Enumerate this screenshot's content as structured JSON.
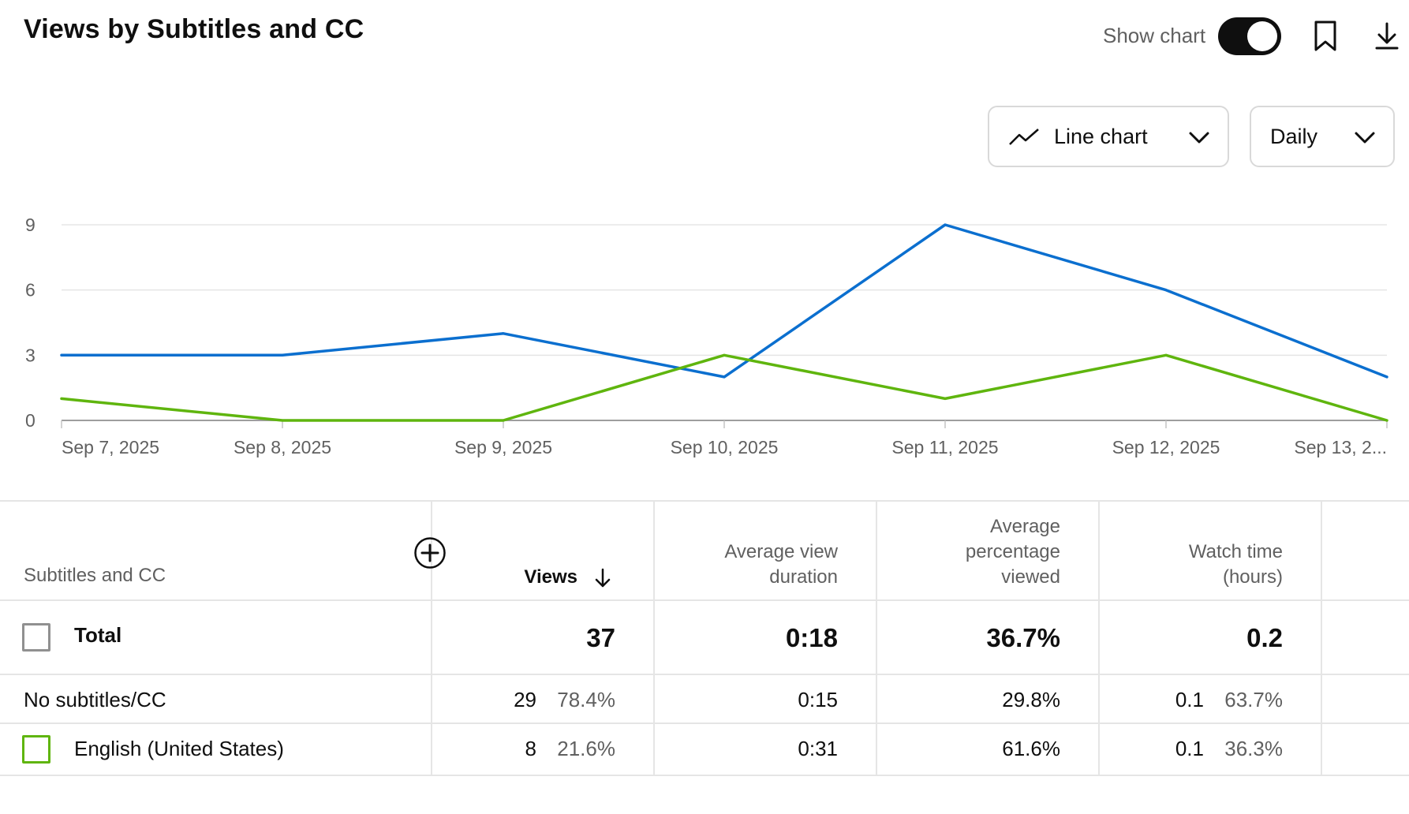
{
  "header": {
    "title": "Views by Subtitles and CC",
    "show_chart_label": "Show chart",
    "show_chart_on": true
  },
  "controls": {
    "chart_type": "Line chart",
    "period": "Daily"
  },
  "colors": {
    "series_blue": "#0b6fcf",
    "series_green": "#5fb50e"
  },
  "chart_data": {
    "type": "line",
    "x": [
      "Sep 7, 2025",
      "Sep 8, 2025",
      "Sep 9, 2025",
      "Sep 10, 2025",
      "Sep 11, 2025",
      "Sep 12, 2025",
      "Sep 13, 2..."
    ],
    "y_ticks": [
      0,
      3,
      6,
      9
    ],
    "ylim": [
      0,
      9
    ],
    "grid": true,
    "series": [
      {
        "color": "#0b6fcf",
        "values": [
          3,
          3,
          4,
          2,
          9,
          6,
          2
        ]
      },
      {
        "color": "#5fb50e",
        "values": [
          1,
          0,
          0,
          3,
          1,
          3,
          0
        ]
      }
    ]
  },
  "table": {
    "columns": {
      "dimension": "Subtitles and CC",
      "views": "Views",
      "avd_line1": "Average view",
      "avd_line2": "duration",
      "apv_line1": "Average",
      "apv_line2": "percentage",
      "apv_line3": "viewed",
      "wt_line1": "Watch time",
      "wt_line2": "(hours)"
    },
    "total": {
      "label": "Total",
      "views": "37",
      "avd": "0:18",
      "apv": "36.7%",
      "wt": "0.2"
    },
    "rows": [
      {
        "label": "No subtitles/CC",
        "views": "29",
        "views_pct": "78.4%",
        "avd": "0:15",
        "apv": "29.8%",
        "wt": "0.1",
        "wt_pct": "63.7%"
      },
      {
        "label": "English (United States)",
        "views": "8",
        "views_pct": "21.6%",
        "avd": "0:31",
        "apv": "61.6%",
        "wt": "0.1",
        "wt_pct": "36.3%"
      }
    ]
  }
}
